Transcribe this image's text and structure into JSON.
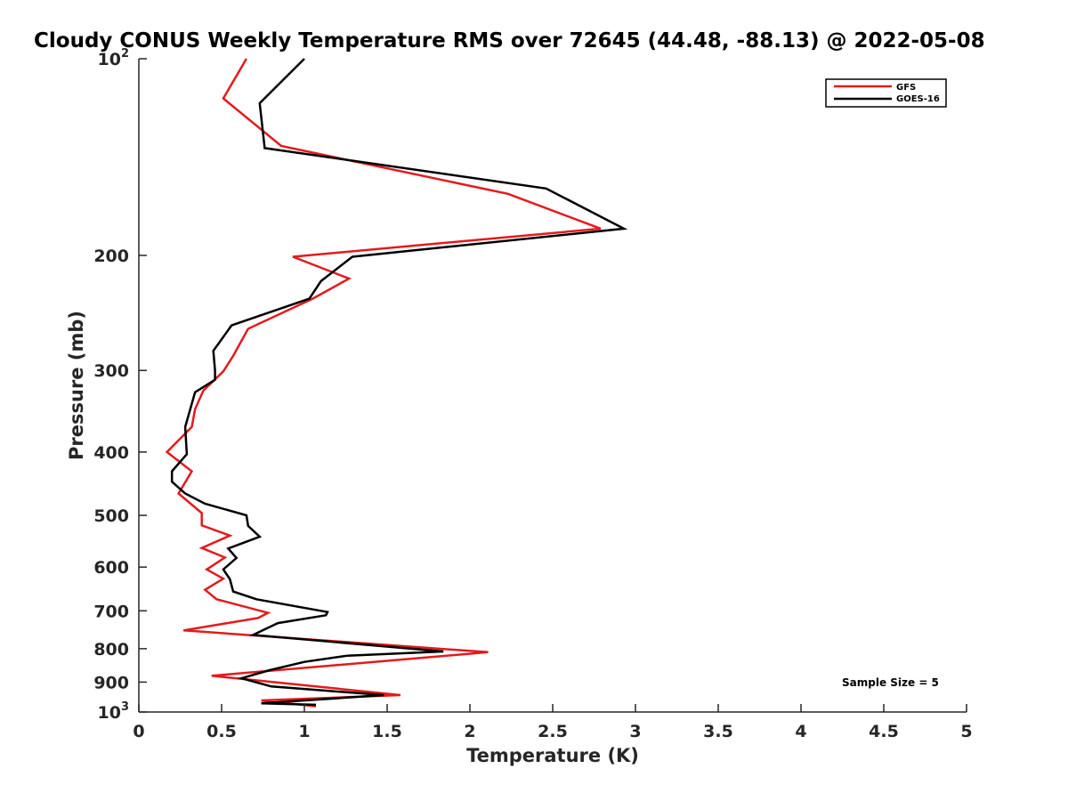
{
  "chart_data": {
    "type": "line",
    "title": "Cloudy CONUS Weekly Temperature RMS over 72645 (44.48, -88.13) @ 2022-05-08",
    "xlabel": "Temperature (K)",
    "ylabel": "Pressure (mb)",
    "xlim": [
      0,
      5
    ],
    "ylim": [
      100,
      1000
    ],
    "y_scale": "log",
    "y_reversed": true,
    "grid": false,
    "legend_position": "top-right",
    "x_ticks": [
      {
        "value": 0,
        "label": "0"
      },
      {
        "value": 0.5,
        "label": "0.5"
      },
      {
        "value": 1,
        "label": "1"
      },
      {
        "value": 1.5,
        "label": "1.5"
      },
      {
        "value": 2,
        "label": "2"
      },
      {
        "value": 2.5,
        "label": "2.5"
      },
      {
        "value": 3,
        "label": "3"
      },
      {
        "value": 3.5,
        "label": "3.5"
      },
      {
        "value": 4,
        "label": "4"
      },
      {
        "value": 4.5,
        "label": "4.5"
      },
      {
        "value": 5,
        "label": "5"
      }
    ],
    "y_ticks": [
      {
        "value": 100,
        "base": "10",
        "exp": "2"
      },
      {
        "value": 200,
        "label": "200"
      },
      {
        "value": 300,
        "label": "300"
      },
      {
        "value": 400,
        "label": "400"
      },
      {
        "value": 500,
        "label": "500"
      },
      {
        "value": 600,
        "label": "600"
      },
      {
        "value": 700,
        "label": "700"
      },
      {
        "value": 800,
        "label": "800"
      },
      {
        "value": 900,
        "label": "900"
      },
      {
        "value": 1000,
        "base": "10",
        "exp": "3"
      }
    ],
    "annotation": "Sample Size = 5",
    "series": [
      {
        "name": "GFS",
        "color": "#e41a1c",
        "points": [
          [
            0.65,
            100
          ],
          [
            0.51,
            115
          ],
          [
            0.86,
            136
          ],
          [
            2.23,
            161
          ],
          [
            2.79,
            182
          ],
          [
            0.93,
            201
          ],
          [
            1.27,
            217
          ],
          [
            1.05,
            233
          ],
          [
            0.66,
            259
          ],
          [
            0.57,
            285
          ],
          [
            0.51,
            301
          ],
          [
            0.39,
            322
          ],
          [
            0.34,
            344
          ],
          [
            0.32,
            366
          ],
          [
            0.17,
            400
          ],
          [
            0.32,
            428
          ],
          [
            0.24,
            463
          ],
          [
            0.38,
            496
          ],
          [
            0.38,
            518
          ],
          [
            0.55,
            537
          ],
          [
            0.38,
            561
          ],
          [
            0.52,
            580
          ],
          [
            0.41,
            605
          ],
          [
            0.51,
            625
          ],
          [
            0.4,
            650
          ],
          [
            0.47,
            672
          ],
          [
            0.78,
            705
          ],
          [
            0.72,
            718
          ],
          [
            0.27,
            750
          ],
          [
            2.11,
            810
          ],
          [
            0.44,
            880
          ],
          [
            1.58,
            942
          ],
          [
            0.74,
            960
          ],
          [
            1.07,
            980
          ]
        ]
      },
      {
        "name": "GOES-16",
        "color": "#000000",
        "points": [
          [
            1.0,
            100
          ],
          [
            0.73,
            117
          ],
          [
            0.76,
            137
          ],
          [
            2.46,
            158
          ],
          [
            2.93,
            182
          ],
          [
            1.29,
            201
          ],
          [
            1.1,
            219
          ],
          [
            1.03,
            233
          ],
          [
            0.56,
            256
          ],
          [
            0.45,
            280
          ],
          [
            0.46,
            300
          ],
          [
            0.46,
            310
          ],
          [
            0.34,
            324
          ],
          [
            0.28,
            366
          ],
          [
            0.29,
            403
          ],
          [
            0.2,
            428
          ],
          [
            0.2,
            444
          ],
          [
            0.28,
            463
          ],
          [
            0.4,
            480
          ],
          [
            0.65,
            500
          ],
          [
            0.66,
            519
          ],
          [
            0.73,
            539
          ],
          [
            0.54,
            562
          ],
          [
            0.59,
            581
          ],
          [
            0.51,
            605
          ],
          [
            0.55,
            626
          ],
          [
            0.57,
            654
          ],
          [
            0.71,
            672
          ],
          [
            1.14,
            703
          ],
          [
            1.13,
            711
          ],
          [
            0.84,
            731
          ],
          [
            0.69,
            762
          ],
          [
            1.84,
            808
          ],
          [
            1.26,
            820
          ],
          [
            1.0,
            838
          ],
          [
            0.79,
            863
          ],
          [
            0.62,
            888
          ],
          [
            0.8,
            914
          ],
          [
            1.48,
            942
          ],
          [
            0.74,
            970
          ],
          [
            1.07,
            975
          ]
        ]
      }
    ]
  }
}
